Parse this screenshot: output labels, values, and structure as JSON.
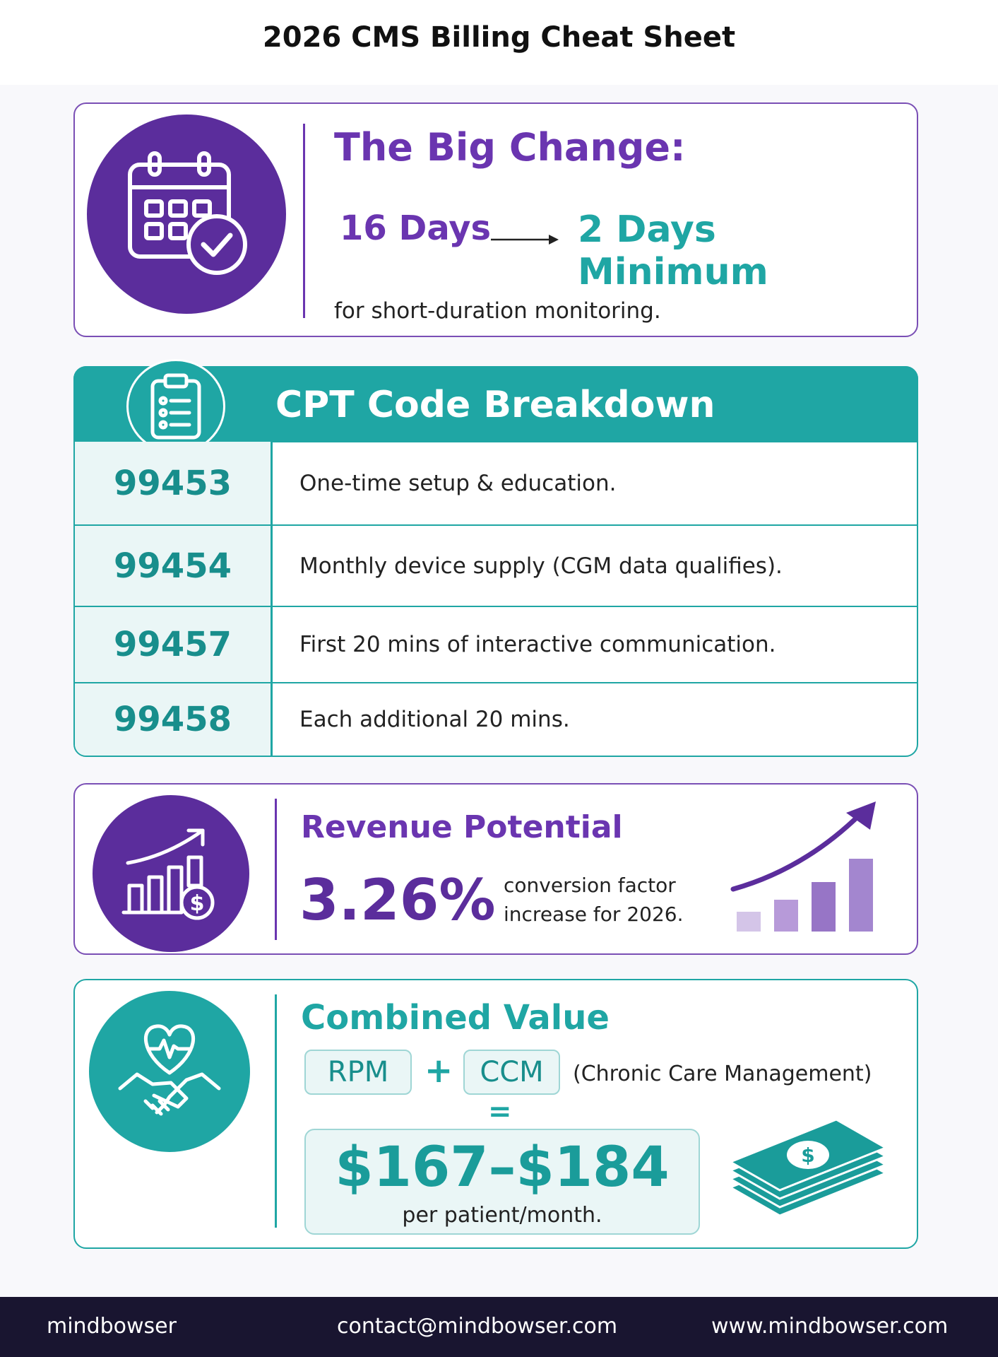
{
  "title": "2026 CMS Billing Cheat Sheet",
  "big_change": {
    "heading": "The Big Change:",
    "from": "16 Days",
    "to": "2 Days Minimum",
    "note": "for short-duration monitoring."
  },
  "cpt": {
    "heading": "CPT Code Breakdown",
    "rows": [
      {
        "code": "99453",
        "description": "One-time setup & education."
      },
      {
        "code": "99454",
        "description": "Monthly device supply (CGM data qualifies)."
      },
      {
        "code": "99457",
        "description": "First 20 mins of interactive communication."
      },
      {
        "code": "99458",
        "description": "Each additional 20 mins."
      }
    ]
  },
  "revenue": {
    "heading": "Revenue Potential",
    "value": "3.26%",
    "note_line1": "conversion factor",
    "note_line2": "increase for 2026."
  },
  "combined": {
    "heading": "Combined Value",
    "left_pill": "RPM",
    "plus": "+",
    "right_pill": "CCM",
    "right_note": "(Chronic Care Management)",
    "equals": "=",
    "amount": "$167–$184",
    "amount_note": "per patient/month."
  },
  "footer": {
    "brand": "mindbowser",
    "email": "contact@mindbowser.com",
    "website": "www.mindbowser.com"
  },
  "colors": {
    "purple": "#5b2d9c",
    "teal": "#1fa6a4",
    "footer_bg": "#191530"
  }
}
